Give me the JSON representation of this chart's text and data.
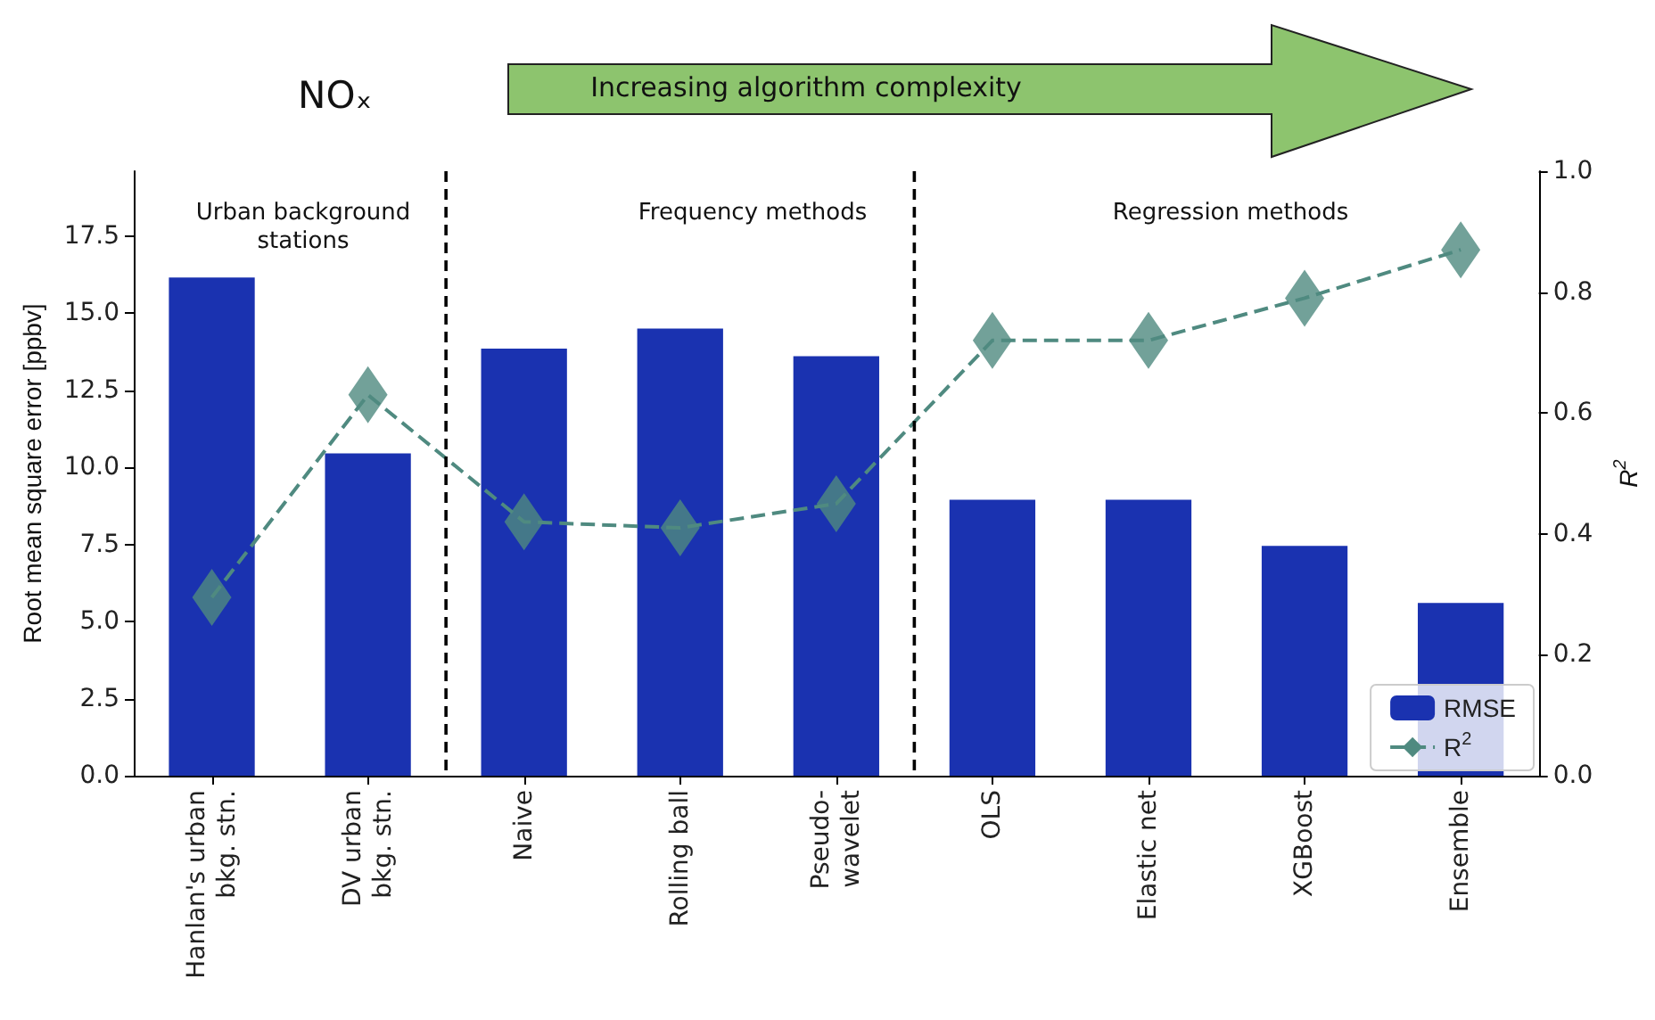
{
  "chart_data": {
    "type": "bar",
    "title": "NOₓ",
    "categories": [
      "Hanlan's urban\nbkg. stn.",
      "DV urban\nbkg. stn.",
      "Naive",
      "Rolling ball",
      "Pseudo-\nwavelet",
      "OLS",
      "Elastic net",
      "XGBoost",
      "Ensemble"
    ],
    "series": [
      {
        "name": "RMSE",
        "color": "#1a32b0",
        "values": [
          16.15,
          10.45,
          13.85,
          14.5,
          13.6,
          8.95,
          8.95,
          7.45,
          5.6
        ]
      },
      {
        "name": "R$^{2}$",
        "type": "line",
        "axis": "y2",
        "color": "#4f8a80",
        "marker": "diamond",
        "line_style": "dashed",
        "values": [
          0.295,
          0.63,
          0.42,
          0.41,
          0.45,
          0.72,
          0.72,
          0.79,
          0.87
        ]
      }
    ],
    "ylabel": "Root mean square error [ppbv]",
    "y2label": "R$^{2}$",
    "ylim": [
      0,
      19.6
    ],
    "yticks": [
      {
        "value": 0,
        "label": "0.0"
      },
      2.5,
      {
        "value": 5,
        "label": "5.0"
      },
      7.5,
      {
        "value": 10,
        "label": "10.0"
      },
      12.5,
      {
        "value": 15,
        "label": "15.0"
      },
      17.5
    ],
    "y2lim": [
      0,
      1
    ],
    "y2ticks": [
      {
        "value": 0,
        "label": "0.0"
      },
      0.2,
      0.4,
      0.6,
      0.8,
      {
        "value": 1,
        "label": "1.0"
      }
    ],
    "annotations": [
      "Increasing algorithm complexity",
      "Urban background\nstations",
      "Frequency methods",
      "Regression methods"
    ],
    "grid": false,
    "legend": "bottom right"
  }
}
